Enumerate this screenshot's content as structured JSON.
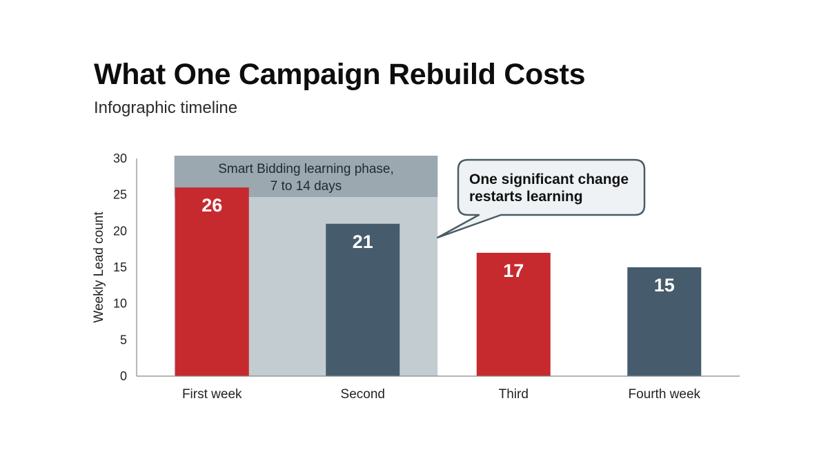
{
  "chart_data": {
    "type": "bar",
    "title": "What One Campaign Rebuild Costs",
    "subtitle": "Infographic timeline",
    "xlabel": "",
    "ylabel": "Weekly Lead count",
    "ylim": [
      0,
      30
    ],
    "yticks": [
      0,
      5,
      10,
      15,
      20,
      25,
      30
    ],
    "categories": [
      "First week",
      "Second",
      "Third",
      "Fourth week"
    ],
    "values": [
      26,
      21,
      17,
      15
    ],
    "bar_colors": [
      "#c62a2f",
      "#465c6c",
      "#c62a2f",
      "#465c6c"
    ],
    "grid": false,
    "annotations": {
      "learning_phase": {
        "label_line1": "Smart Bidding learning phase,",
        "label_line2": "7 to 14 days",
        "span_categories": [
          "First week",
          "Second"
        ],
        "header_color": "#9ba8b0",
        "fill_color": "#c3cdd1"
      },
      "callout": {
        "line1": "One significant change",
        "line2": "restarts learning"
      }
    }
  }
}
